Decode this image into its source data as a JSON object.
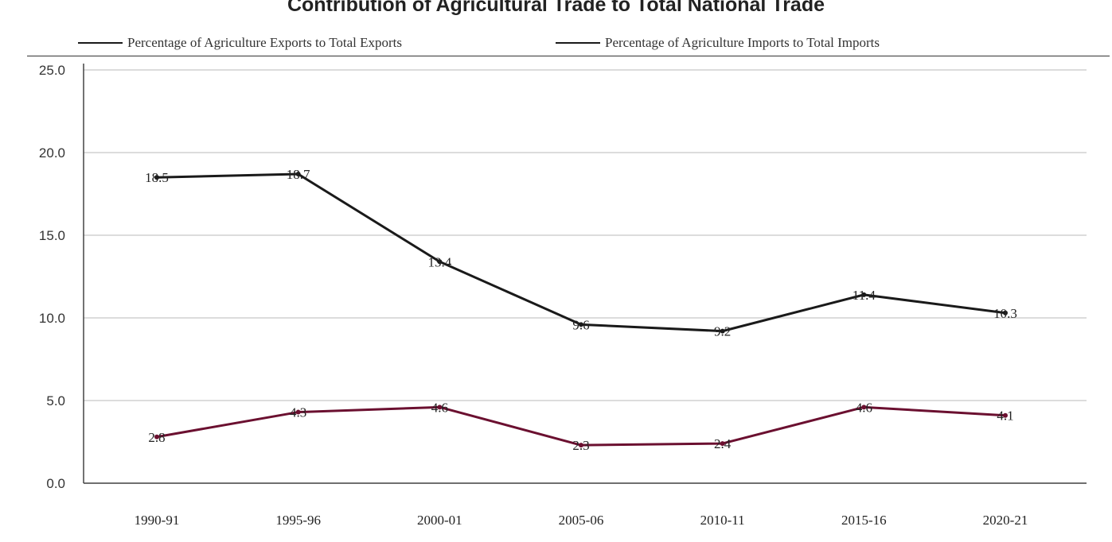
{
  "chart_data": {
    "type": "line",
    "title": "Contribution of Agricultural Trade to Total National Trade",
    "xlabel": "",
    "ylabel": "",
    "categories": [
      "1990-91",
      "1995-96",
      "2000-01",
      "2005-06",
      "2010-11",
      "2015-16",
      "2020-21"
    ],
    "ylim": [
      0,
      25
    ],
    "yticks": [
      "0.0",
      "5.0",
      "10.0",
      "15.0",
      "20.0",
      "25.0"
    ],
    "grid": true,
    "legend": "top",
    "series": [
      {
        "name": "Percentage of Agriculture Exports to Total Exports",
        "values": [
          18.5,
          18.7,
          13.4,
          9.6,
          9.2,
          11.4,
          10.3
        ],
        "labels": [
          "18.5",
          "18.7",
          "13.4",
          "9.6",
          "9.2",
          "11.4",
          "10.3"
        ],
        "color": "#1a1a1a"
      },
      {
        "name": "Percentage of Agriculture Imports to Total Imports",
        "values": [
          2.8,
          4.3,
          4.6,
          2.3,
          2.4,
          4.6,
          4.1
        ],
        "labels": [
          "2.8",
          "4.3",
          "4.6",
          "2.3",
          "2.4",
          "4.6",
          "4.1"
        ],
        "color": "#6b1030"
      }
    ]
  }
}
